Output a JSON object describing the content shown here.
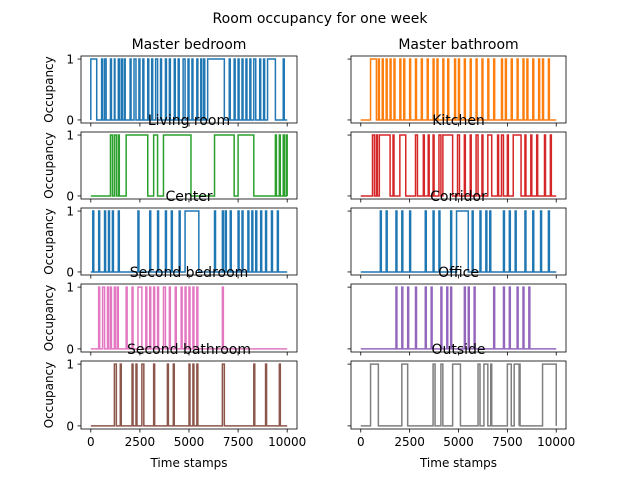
{
  "chart_data": {
    "type": "line",
    "title": "Room occupancy for one week",
    "xlabel": "Time stamps",
    "ylabel": "Occupancy",
    "xlim": [
      -500,
      10500
    ],
    "ylim": [
      -0.05,
      1.05
    ],
    "xticks": [
      0,
      2500,
      5000,
      7500,
      10000
    ],
    "xtick_labels": [
      "0",
      "2500",
      "5000",
      "7500",
      "10000"
    ],
    "yticks": [
      0,
      1
    ],
    "ytick_labels": [
      "0",
      "1"
    ],
    "grid": false,
    "panels": [
      {
        "title": "Master bedroom",
        "color": "#1f77b4",
        "on_intervals": [
          [
            0,
            300
          ],
          [
            550,
            600
          ],
          [
            700,
            780
          ],
          [
            1000,
            1050
          ],
          [
            1200,
            1230
          ],
          [
            1400,
            1450
          ],
          [
            1550,
            1600
          ],
          [
            1700,
            1750
          ],
          [
            2000,
            2050
          ],
          [
            2200,
            2300
          ],
          [
            2450,
            2500
          ],
          [
            2650,
            2700
          ],
          [
            2900,
            2950
          ],
          [
            3100,
            3150
          ],
          [
            3300,
            3400
          ],
          [
            3550,
            3600
          ],
          [
            3800,
            3850
          ],
          [
            4000,
            4050
          ],
          [
            4250,
            4300
          ],
          [
            4450,
            4500
          ],
          [
            4700,
            4800
          ],
          [
            4950,
            5000
          ],
          [
            5150,
            5200
          ],
          [
            5400,
            5450
          ],
          [
            5600,
            5650
          ],
          [
            5750,
            5800
          ],
          [
            5950,
            6800
          ],
          [
            7050,
            7100
          ],
          [
            7300,
            7350
          ],
          [
            7500,
            7550
          ],
          [
            7700,
            7750
          ],
          [
            7900,
            7950
          ],
          [
            8100,
            8150
          ],
          [
            8300,
            8400
          ],
          [
            8600,
            8650
          ],
          [
            8800,
            8850
          ],
          [
            9000,
            9400
          ],
          [
            9800,
            9850
          ]
        ]
      },
      {
        "title": "Master bathroom",
        "color": "#ff7f0e",
        "on_intervals": [
          [
            500,
            800
          ],
          [
            900,
            950
          ],
          [
            1100,
            1150
          ],
          [
            1300,
            1350
          ],
          [
            1500,
            1550
          ],
          [
            1700,
            1750
          ],
          [
            2000,
            2050
          ],
          [
            2200,
            2250
          ],
          [
            2500,
            2550
          ],
          [
            2800,
            2850
          ],
          [
            3100,
            3150
          ],
          [
            3400,
            3450
          ],
          [
            3700,
            3750
          ],
          [
            3900,
            3950
          ],
          [
            4200,
            4250
          ],
          [
            4450,
            4500
          ],
          [
            4800,
            4850
          ],
          [
            5000,
            5050
          ],
          [
            5300,
            5350
          ],
          [
            5600,
            5650
          ],
          [
            5900,
            5950
          ],
          [
            6200,
            6250
          ],
          [
            6500,
            6550
          ],
          [
            6800,
            6850
          ],
          [
            7200,
            7250
          ],
          [
            7400,
            7450
          ],
          [
            7700,
            7750
          ],
          [
            8000,
            8050
          ],
          [
            8300,
            8350
          ],
          [
            8500,
            8550
          ],
          [
            8800,
            8850
          ],
          [
            9100,
            9150
          ],
          [
            9300,
            9350
          ],
          [
            9600,
            9650
          ]
        ]
      },
      {
        "title": "Living room",
        "color": "#2ca02c",
        "on_intervals": [
          [
            1000,
            1100
          ],
          [
            1200,
            1300
          ],
          [
            1400,
            1450
          ],
          [
            1800,
            2900
          ],
          [
            3200,
            3400
          ],
          [
            3700,
            5100
          ],
          [
            6300,
            7300
          ],
          [
            7500,
            8300
          ],
          [
            9400,
            9450
          ],
          [
            9600,
            9650
          ],
          [
            9800,
            9850
          ],
          [
            9950,
            10000
          ]
        ]
      },
      {
        "title": "Kitchen",
        "color": "#d62728",
        "on_intervals": [
          [
            600,
            700
          ],
          [
            800,
            850
          ],
          [
            950,
            1500
          ],
          [
            1650,
            1700
          ],
          [
            2000,
            2300
          ],
          [
            2800,
            2900
          ],
          [
            3200,
            3250
          ],
          [
            3450,
            3500
          ],
          [
            3700,
            3750
          ],
          [
            4000,
            4100
          ],
          [
            4200,
            4700
          ],
          [
            4950,
            5050
          ],
          [
            5300,
            5350
          ],
          [
            5600,
            5650
          ],
          [
            5900,
            6000
          ],
          [
            6200,
            6250
          ],
          [
            6500,
            6700
          ],
          [
            7000,
            7050
          ],
          [
            7200,
            7300
          ],
          [
            7500,
            7550
          ],
          [
            7800,
            8200
          ],
          [
            8400,
            8450
          ],
          [
            8700,
            8750
          ],
          [
            9000,
            9050
          ],
          [
            9400,
            9450
          ],
          [
            9700,
            9750
          ]
        ]
      },
      {
        "title": "Center",
        "color": "#1f77b4",
        "on_intervals": [
          [
            100,
            150
          ],
          [
            400,
            450
          ],
          [
            700,
            750
          ],
          [
            900,
            950
          ],
          [
            1100,
            1150
          ],
          [
            1400,
            1450
          ],
          [
            2400,
            2450
          ],
          [
            3000,
            3050
          ],
          [
            3400,
            3450
          ],
          [
            3800,
            3850
          ],
          [
            4100,
            4150
          ],
          [
            4500,
            4550
          ],
          [
            4800,
            5500
          ],
          [
            6300,
            6350
          ],
          [
            6700,
            6750
          ],
          [
            6850,
            6900
          ],
          [
            7100,
            7150
          ],
          [
            7500,
            7550
          ],
          [
            7700,
            7750
          ],
          [
            8000,
            8050
          ],
          [
            8200,
            8250
          ],
          [
            8400,
            8450
          ],
          [
            8650,
            8700
          ],
          [
            8900,
            8950
          ],
          [
            9200,
            9250
          ],
          [
            9500,
            9550
          ]
        ]
      },
      {
        "title": "Corridor",
        "color": "#1f77b4",
        "on_intervals": [
          [
            1000,
            1050
          ],
          [
            1300,
            1350
          ],
          [
            1800,
            1850
          ],
          [
            2100,
            2150
          ],
          [
            2500,
            2550
          ],
          [
            3300,
            3350
          ],
          [
            3700,
            3750
          ],
          [
            4000,
            4050
          ],
          [
            4600,
            4650
          ],
          [
            4900,
            5500
          ],
          [
            5700,
            5750
          ],
          [
            6100,
            6150
          ],
          [
            6400,
            6450
          ],
          [
            6600,
            6650
          ],
          [
            7300,
            7350
          ],
          [
            7600,
            7650
          ],
          [
            7900,
            7950
          ],
          [
            8400,
            8450
          ],
          [
            8800,
            8850
          ],
          [
            9200,
            9250
          ],
          [
            9600,
            9650
          ]
        ]
      },
      {
        "title": "Second bedroom",
        "color": "#e377c2",
        "on_intervals": [
          [
            400,
            450
          ],
          [
            600,
            700
          ],
          [
            850,
            900
          ],
          [
            1000,
            1050
          ],
          [
            1200,
            1250
          ],
          [
            1350,
            1400
          ],
          [
            1800,
            1850
          ],
          [
            2100,
            2150
          ],
          [
            2400,
            2600
          ],
          [
            2800,
            2850
          ],
          [
            3000,
            3050
          ],
          [
            3200,
            3250
          ],
          [
            3400,
            3450
          ],
          [
            3700,
            3800
          ],
          [
            4000,
            4050
          ],
          [
            4300,
            4350
          ],
          [
            4600,
            4650
          ],
          [
            4800,
            4850
          ],
          [
            5000,
            5050
          ],
          [
            5200,
            5250
          ],
          [
            5400,
            5450
          ],
          [
            6700,
            6750
          ]
        ]
      },
      {
        "title": "Office",
        "color": "#9467bd",
        "on_intervals": [
          [
            1800,
            1850
          ],
          [
            2100,
            2150
          ],
          [
            2400,
            2450
          ],
          [
            2800,
            2850
          ],
          [
            3300,
            3350
          ],
          [
            3600,
            3650
          ],
          [
            4100,
            4150
          ],
          [
            4400,
            4450
          ],
          [
            4600,
            4650
          ],
          [
            5300,
            5350
          ],
          [
            5500,
            5550
          ],
          [
            5800,
            5850
          ],
          [
            6800,
            6850
          ],
          [
            7300,
            7350
          ],
          [
            7600,
            7650
          ],
          [
            8000,
            8050
          ],
          [
            8300,
            8350
          ],
          [
            8600,
            8650
          ]
        ]
      },
      {
        "title": "Second bathroom",
        "color": "#8c564b",
        "on_intervals": [
          [
            1200,
            1300
          ],
          [
            1500,
            1550
          ],
          [
            2100,
            2150
          ],
          [
            2300,
            2350
          ],
          [
            2600,
            2700
          ],
          [
            3200,
            3250
          ],
          [
            3900,
            3950
          ],
          [
            4200,
            4250
          ],
          [
            5000,
            5050
          ],
          [
            5200,
            5250
          ],
          [
            5400,
            5450
          ],
          [
            6700,
            6800
          ],
          [
            8300,
            8350
          ],
          [
            8900,
            8950
          ],
          [
            9600,
            9650
          ]
        ]
      },
      {
        "title": "Outside",
        "color": "#7f7f7f",
        "on_intervals": [
          [
            500,
            900
          ],
          [
            2100,
            2400
          ],
          [
            3700,
            3800
          ],
          [
            4100,
            4200
          ],
          [
            4700,
            5100
          ],
          [
            6000,
            6100
          ],
          [
            6300,
            6500
          ],
          [
            6650,
            6700
          ],
          [
            7500,
            7700
          ],
          [
            7850,
            8100
          ],
          [
            8100,
            8150
          ],
          [
            9300,
            10000
          ]
        ]
      }
    ]
  }
}
